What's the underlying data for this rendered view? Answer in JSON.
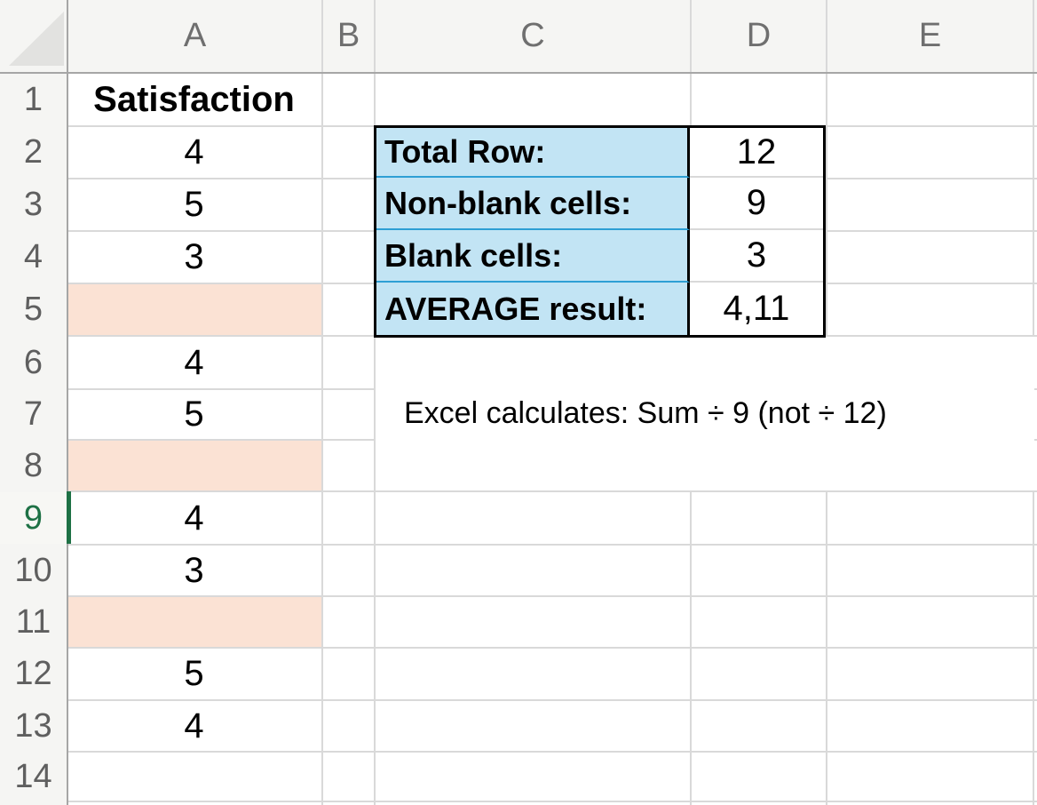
{
  "grid": {
    "column_headers": [
      "A",
      "B",
      "C",
      "D",
      "E"
    ],
    "row_numbers": [
      "1",
      "2",
      "3",
      "4",
      "5",
      "6",
      "7",
      "8",
      "9",
      "10",
      "11",
      "12",
      "13",
      "14"
    ],
    "cells": {
      "A1": "Satisfaction",
      "A2": "4",
      "A3": "5",
      "A4": "3",
      "A6": "4",
      "A7": "5",
      "A9": "4",
      "A10": "3",
      "A12": "5",
      "A13": "4"
    },
    "blank_highlighted_cells": [
      "A5",
      "A8",
      "A11"
    ]
  },
  "summary_table": {
    "rows": [
      {
        "label": "Total Row:",
        "value": "12"
      },
      {
        "label": "Non-blank cells:",
        "value": "9"
      },
      {
        "label": "Blank cells:",
        "value": "3"
      },
      {
        "label": "AVERAGE result:",
        "value": "4,11"
      }
    ]
  },
  "annotation": {
    "text": "Excel calculates: Sum ÷ 9 (not ÷ 12)"
  },
  "selection": {
    "active_cell": "A9",
    "active_cell_row": "9"
  },
  "colors": {
    "blank_cell_fill": "#fbe2d4",
    "summary_label_fill": "#c2e4f4",
    "summary_divider_blue": "#2e9fd4",
    "summary_table_border": "#000000",
    "selection_green": "#1e7145",
    "header_background": "#f5f5f3",
    "gridline": "#d9d9d9"
  }
}
